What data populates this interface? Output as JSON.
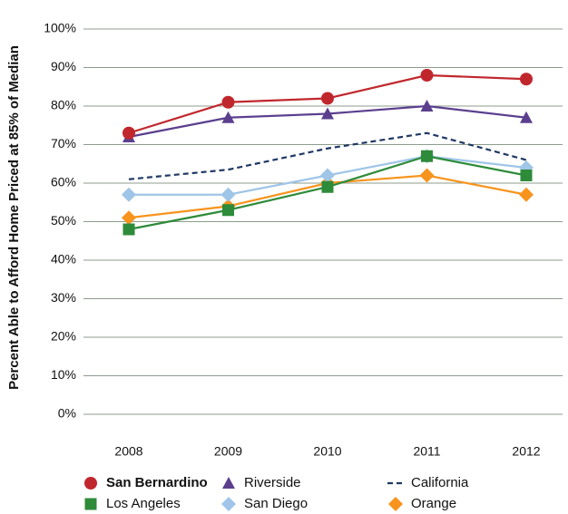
{
  "chart_data": {
    "type": "line",
    "y_label": "Percent Able to Afford Home Priced at 85% of Median",
    "categories": [
      "2008",
      "2009",
      "2010",
      "2011",
      "2012"
    ],
    "series": [
      {
        "name": "San Bernardino",
        "color": "#c0272d",
        "marker": "circle",
        "values": [
          73,
          81,
          82,
          88,
          87
        ]
      },
      {
        "name": "Riverside",
        "color": "#5b3f8e",
        "marker": "triangle",
        "values": [
          72,
          77,
          78,
          80,
          77
        ]
      },
      {
        "name": "California",
        "color": "#1f3864",
        "marker": "none",
        "dashed": true,
        "values": [
          61,
          63.5,
          69,
          73,
          66
        ]
      },
      {
        "name": "Los Angeles",
        "color": "#2e8b3a",
        "marker": "square",
        "values": [
          48,
          53,
          59,
          67,
          62
        ]
      },
      {
        "name": "San Diego",
        "color": "#9fc5e8",
        "marker": "diamond",
        "values": [
          57,
          57,
          62,
          67,
          64
        ]
      },
      {
        "name": "Orange",
        "color": "#f7941d",
        "marker": "diamond",
        "values": [
          51,
          54,
          60,
          62,
          57
        ]
      }
    ],
    "ylim": [
      0,
      100
    ],
    "yticks": [
      {
        "value": 0,
        "label": "0%"
      },
      {
        "value": 10,
        "label": "10%"
      },
      {
        "value": 20,
        "label": "20%"
      },
      {
        "value": 30,
        "label": "30%"
      },
      {
        "value": 40,
        "label": "40%"
      },
      {
        "value": 50,
        "label": "50%"
      },
      {
        "value": 60,
        "label": "60%"
      },
      {
        "value": 70,
        "label": "70%"
      },
      {
        "value": 80,
        "label": "80%"
      },
      {
        "value": 90,
        "label": "90%"
      },
      {
        "value": 100,
        "label": "100%"
      }
    ],
    "grid": true
  }
}
